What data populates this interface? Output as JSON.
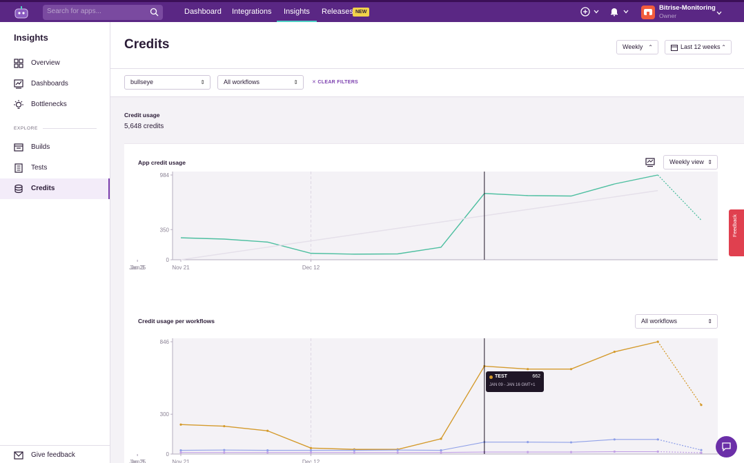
{
  "topbar": {
    "search_placeholder": "Search for apps...",
    "nav": [
      "Dashboard",
      "Integrations",
      "Insights",
      "Releases"
    ],
    "new_badge": "NEW",
    "org_name": "Bitrise-Monitoring",
    "org_role": "Owner"
  },
  "sidebar": {
    "title": "Insights",
    "items": [
      {
        "label": "Overview",
        "icon": "grid-icon"
      },
      {
        "label": "Dashboards",
        "icon": "chart-icon"
      },
      {
        "label": "Bottlenecks",
        "icon": "bulb-icon"
      }
    ],
    "section": "EXPLORE",
    "explore_items": [
      {
        "label": "Builds",
        "icon": "builds-icon"
      },
      {
        "label": "Tests",
        "icon": "tests-icon"
      },
      {
        "label": "Credits",
        "icon": "credits-icon",
        "active": true
      }
    ],
    "give_feedback": "Give feedback"
  },
  "page": {
    "title": "Credits",
    "period": "Weekly",
    "range": "Last 12 weeks",
    "filter_app": "bullseye",
    "filter_workflow": "All workflows",
    "clear_filters": "CLEAR FILTERS",
    "credit_usage_label": "Credit usage",
    "credit_usage_value": "5,648 credits"
  },
  "feedback_tab": "Feedback",
  "chart_data": [
    {
      "type": "line",
      "title": "App credit usage",
      "view_select": "Weekly view",
      "x_ticks": [
        "Nov 21",
        "Dec 12",
        "Jan 3",
        "Jan 25"
      ],
      "y_ticks": [
        "0",
        "350",
        "984"
      ],
      "ylim": [
        0,
        984
      ],
      "x": [
        "Nov 21",
        "Nov 28",
        "Dec 5",
        "Dec 12",
        "Dec 19",
        "Dec 26",
        "Jan 2",
        "Jan 9",
        "Jan 16",
        "Jan 23",
        "Jan 30",
        "Feb 6",
        "Feb 13"
      ],
      "series": [
        {
          "name": "",
          "color": "#4dbfa0",
          "values": [
            255,
            240,
            205,
            75,
            65,
            68,
            145,
            770,
            745,
            740,
            880,
            984,
            460
          ],
          "projected_from": 11
        },
        {
          "name": "",
          "color": "#e5e0ea",
          "values": [
            0,
            73,
            146,
            219,
            292,
            365,
            438,
            511,
            584,
            657,
            730,
            803,
            null
          ]
        }
      ],
      "grid": true
    },
    {
      "type": "line",
      "title": "Credit usage per workflows",
      "workflow_select": "All workflows",
      "x_ticks": [
        "Nov 21",
        "Dec 12",
        "Jan 3",
        "Jan 25"
      ],
      "y_ticks": [
        "0",
        "300",
        "846"
      ],
      "ylim": [
        0,
        846
      ],
      "x": [
        "Nov 21",
        "Nov 28",
        "Dec 5",
        "Dec 12",
        "Dec 19",
        "Dec 26",
        "Jan 2",
        "Jan 9",
        "Jan 16",
        "Jan 23",
        "Jan 30",
        "Feb 6",
        "Feb 13"
      ],
      "series": [
        {
          "name": "TEST",
          "color": "#d49a2b",
          "values": [
            222,
            210,
            175,
            45,
            35,
            35,
            115,
            662,
            640,
            640,
            770,
            846,
            370
          ],
          "projected_from": 11
        },
        {
          "name": "",
          "color": "#8fa0e8",
          "values": [
            28,
            30,
            28,
            28,
            28,
            30,
            28,
            90,
            90,
            88,
            110,
            110,
            30
          ],
          "projected_from": 11
        },
        {
          "name": "",
          "color": "#c2a0e6",
          "values": [
            12,
            12,
            12,
            12,
            12,
            12,
            12,
            15,
            15,
            15,
            18,
            18,
            10
          ],
          "projected_from": 11
        }
      ],
      "grid": true,
      "tooltip": {
        "series": "TEST",
        "value": "662",
        "range": "JAN 09 - JAN 16 GMT+1"
      }
    }
  ]
}
